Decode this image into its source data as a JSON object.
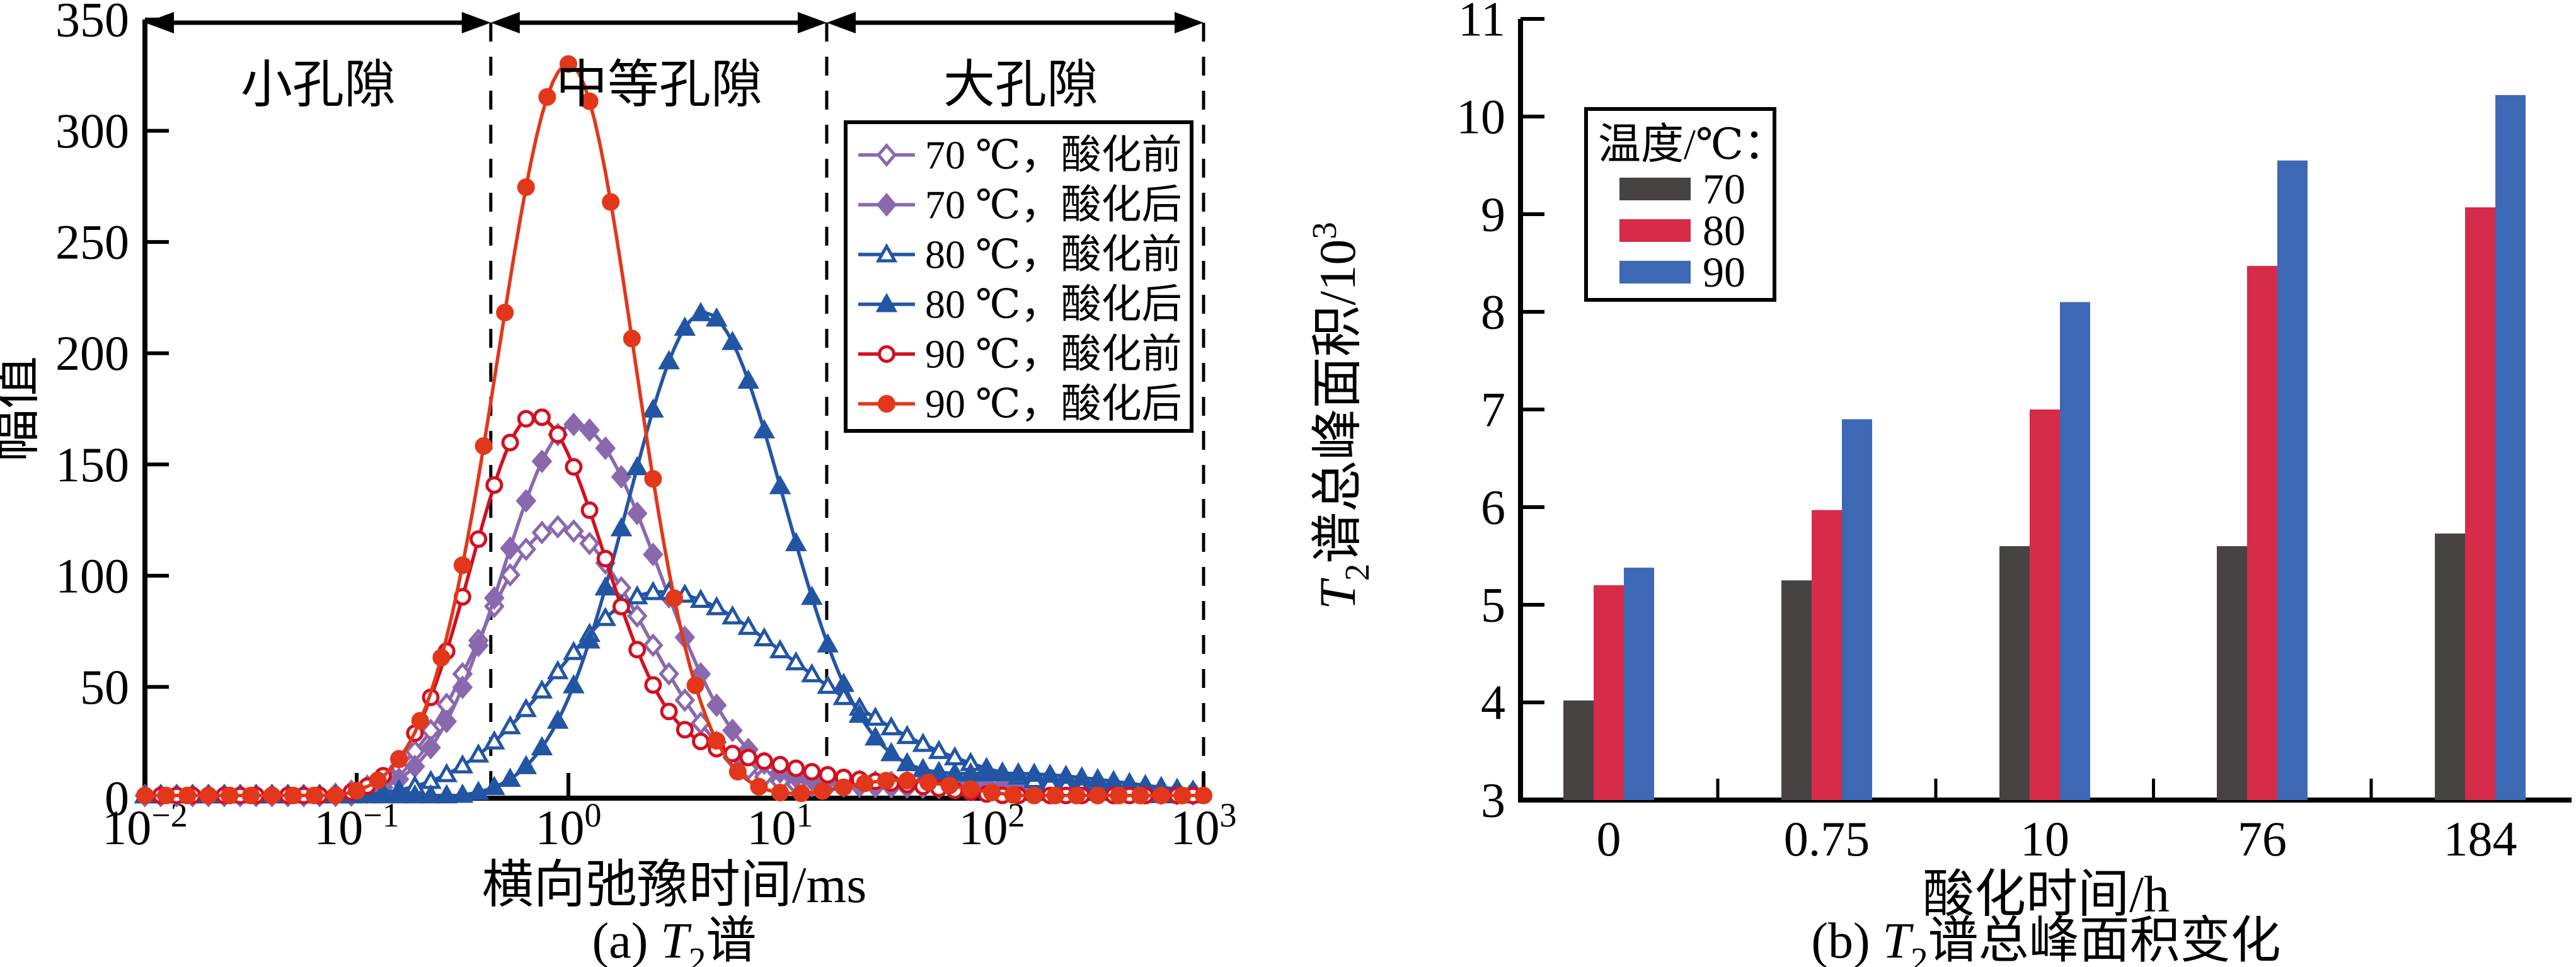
{
  "figure": {
    "background": "#ffffff",
    "axis_color": "#000000"
  },
  "chart_data": [
    {
      "panel": "a",
      "type": "line",
      "caption": {
        "prefix": "(a) ",
        "var": "T",
        "sub": "2",
        "rest": "谱"
      },
      "xlabel": "横向弛豫时间/ms",
      "ylabel": "幅值",
      "xscale": "log",
      "xlim": [
        0.01,
        1000
      ],
      "ylim": [
        0,
        350
      ],
      "yticks": [
        0,
        50,
        100,
        150,
        200,
        250,
        300,
        350
      ],
      "xtick_exponents": [
        -2,
        -1,
        0,
        1,
        2,
        3
      ],
      "grid": false,
      "regions": [
        {
          "label": "小孔隙",
          "from": 0.01,
          "to": 0.43
        },
        {
          "label": "中等孔隙",
          "from": 0.43,
          "to": 16.6
        },
        {
          "label": "大孔隙",
          "from": 16.6,
          "to": 1000
        }
      ],
      "divider_x": [
        0.43,
        16.6,
        1000
      ],
      "legend_position": "inside-right",
      "series": [
        {
          "name": "70 ℃，酸化前",
          "color": "#8a68ae",
          "marker": "diamond",
          "fill": "open",
          "peak": {
            "x": 0.9,
            "y": 123
          },
          "components": [
            [
              122,
              -0.05,
              0.36,
              0.42
            ],
            [
              5,
              1.4,
              0.3,
              1.1
            ]
          ]
        },
        {
          "name": "70 ℃，酸化后",
          "color": "#8a68ae",
          "marker": "diamond",
          "fill": "solid",
          "peak": {
            "x": 1.1,
            "y": 170
          },
          "components": [
            [
              168,
              0.03,
              0.34,
              0.4
            ],
            [
              7,
              1.4,
              0.3,
              1.1
            ]
          ]
        },
        {
          "name": "80 ℃，酸化前",
          "color": "#2255a4",
          "marker": "triangle",
          "fill": "open",
          "peak": {
            "x": 2.6,
            "y": 95
          },
          "components": [
            [
              92,
              0.42,
              0.48,
              0.62
            ],
            [
              13,
              1.5,
              0.45,
              0.6
            ]
          ]
        },
        {
          "name": "80 ℃，酸化后",
          "color": "#2255a4",
          "marker": "triangle",
          "fill": "solid",
          "peak": {
            "x": 4.4,
            "y": 220
          },
          "components": [
            [
              218,
              0.64,
              0.36,
              0.38
            ],
            [
              11,
              2.1,
              0.5,
              0.55
            ]
          ]
        },
        {
          "name": "90 ℃，酸化前",
          "color": "#d40f1f",
          "marker": "circle",
          "fill": "open",
          "peak": {
            "x": 0.7,
            "y": 175
          },
          "components": [
            [
              172,
              -0.16,
              0.3,
              0.34
            ],
            [
              16,
              0.8,
              0.3,
              0.35
            ],
            [
              5,
              1.55,
              0.3,
              0.3
            ]
          ]
        },
        {
          "name": "90 ℃，酸化后",
          "color": "#e2371a",
          "marker": "circle",
          "fill": "solid",
          "peak": {
            "x": 1.0,
            "y": 332
          },
          "components": [
            [
              330,
              0.0,
              0.33,
              0.31
            ],
            [
              8,
              1.55,
              0.25,
              0.3
            ]
          ]
        }
      ]
    },
    {
      "panel": "b",
      "type": "bar",
      "caption": {
        "prefix": "(b) ",
        "var": "T",
        "sub": "2",
        "rest": "谱总峰面积变化"
      },
      "xlabel": "酸化时间/h",
      "ylabel": {
        "var": "T",
        "sub": "2",
        "rest": "谱总峰面积/10",
        "sup": "3"
      },
      "categories": [
        "0",
        "0.75",
        "10",
        "76",
        "184"
      ],
      "ylim": [
        3,
        11
      ],
      "yticks": [
        3,
        4,
        5,
        6,
        7,
        8,
        9,
        10,
        11
      ],
      "legend_title": "温度/℃：",
      "series": [
        {
          "name": "70",
          "color": "#484343",
          "values": [
            4.02,
            5.25,
            5.6,
            5.6,
            5.73
          ]
        },
        {
          "name": "80",
          "color": "#d62b49",
          "values": [
            5.2,
            5.97,
            7.0,
            8.47,
            9.07
          ]
        },
        {
          "name": "90",
          "color": "#3d68b5",
          "values": [
            5.38,
            6.9,
            8.1,
            9.55,
            10.22
          ]
        }
      ]
    }
  ]
}
